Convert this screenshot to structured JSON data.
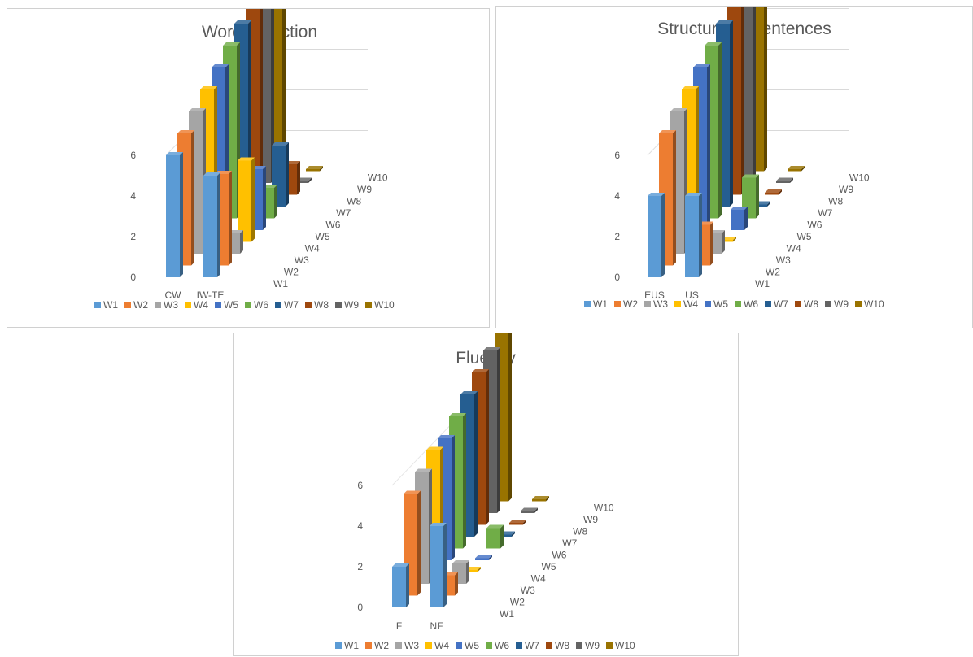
{
  "chart_data": [
    {
      "type": "bar",
      "subtype": "3d-column",
      "title": "Word Selection",
      "categories": [
        "CW",
        "IW-TE"
      ],
      "depth_labels": [
        "W1",
        "W2",
        "W3",
        "W4",
        "W5",
        "W6",
        "W7",
        "W8",
        "W9",
        "W10"
      ],
      "yticks": [
        "0",
        "2",
        "4",
        "6"
      ],
      "ylim": [
        0,
        11
      ],
      "grid": true,
      "legend_position": "bottom",
      "series": [
        {
          "name": "W1",
          "values": [
            6,
            5
          ]
        },
        {
          "name": "W2",
          "values": [
            6.5,
            4.5
          ]
        },
        {
          "name": "W3",
          "values": [
            7,
            1
          ]
        },
        {
          "name": "W4",
          "values": [
            7.5,
            4
          ]
        },
        {
          "name": "W5",
          "values": [
            8,
            3
          ]
        },
        {
          "name": "W6",
          "values": [
            8.5,
            1.5
          ]
        },
        {
          "name": "W7",
          "values": [
            9,
            3
          ]
        },
        {
          "name": "W8",
          "values": [
            9.5,
            1.5
          ]
        },
        {
          "name": "W9",
          "values": [
            10,
            0
          ]
        },
        {
          "name": "W10",
          "values": [
            10.5,
            0
          ]
        }
      ]
    },
    {
      "type": "bar",
      "subtype": "3d-column",
      "title": "Structure of Sentences",
      "categories": [
        "EUS",
        "US"
      ],
      "depth_labels": [
        "W1",
        "W2",
        "W3",
        "W4",
        "W5",
        "W6",
        "W7",
        "W8",
        "W9",
        "W10"
      ],
      "yticks": [
        "0",
        "2",
        "4",
        "6"
      ],
      "ylim": [
        0,
        11
      ],
      "grid": true,
      "legend_position": "bottom",
      "series": [
        {
          "name": "W1",
          "values": [
            4,
            4
          ]
        },
        {
          "name": "W2",
          "values": [
            6.5,
            2
          ]
        },
        {
          "name": "W3",
          "values": [
            7,
            1
          ]
        },
        {
          "name": "W4",
          "values": [
            7.5,
            0
          ]
        },
        {
          "name": "W5",
          "values": [
            8,
            1
          ]
        },
        {
          "name": "W6",
          "values": [
            8.5,
            2
          ]
        },
        {
          "name": "W7",
          "values": [
            9,
            0
          ]
        },
        {
          "name": "W8",
          "values": [
            9.5,
            0
          ]
        },
        {
          "name": "W9",
          "values": [
            10,
            0
          ]
        },
        {
          "name": "W10",
          "values": [
            10.5,
            0
          ]
        }
      ]
    },
    {
      "type": "bar",
      "subtype": "3d-column",
      "title": "Fluency",
      "categories": [
        "F",
        "NF"
      ],
      "depth_labels": [
        "W1",
        "W2",
        "W3",
        "W4",
        "W5",
        "W6",
        "W7",
        "W8",
        "W9",
        "W10"
      ],
      "yticks": [
        "0",
        "2",
        "4",
        "6"
      ],
      "ylim": [
        0,
        11
      ],
      "grid": false,
      "legend_position": "bottom",
      "series": [
        {
          "name": "W1",
          "values": [
            2,
            4
          ]
        },
        {
          "name": "W2",
          "values": [
            5,
            1
          ]
        },
        {
          "name": "W3",
          "values": [
            5.5,
            1
          ]
        },
        {
          "name": "W4",
          "values": [
            6,
            0
          ]
        },
        {
          "name": "W5",
          "values": [
            6,
            0
          ]
        },
        {
          "name": "W6",
          "values": [
            6.5,
            1
          ]
        },
        {
          "name": "W7",
          "values": [
            7,
            0
          ]
        },
        {
          "name": "W8",
          "values": [
            7.5,
            0
          ]
        },
        {
          "name": "W9",
          "values": [
            8,
            0
          ]
        },
        {
          "name": "W10",
          "values": [
            8.5,
            0
          ]
        }
      ]
    }
  ],
  "series_colors": [
    "#5b9bd5",
    "#ed7d31",
    "#a5a5a5",
    "#ffc000",
    "#4472c4",
    "#70ad47",
    "#255e91",
    "#9e480e",
    "#636363",
    "#997300"
  ]
}
